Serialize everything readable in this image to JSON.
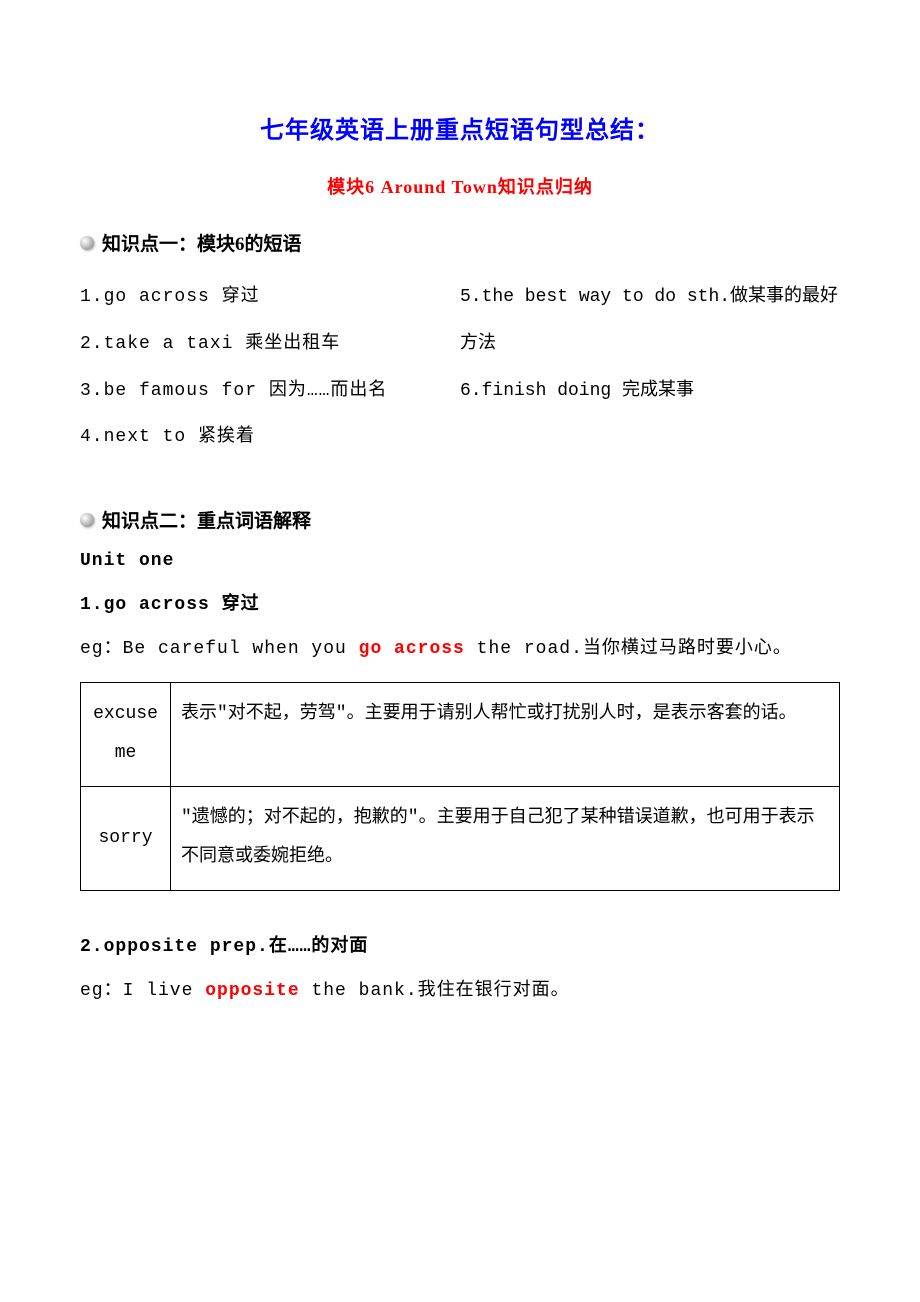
{
  "title": {
    "main": "七年级英语上册重点短语句型总结：",
    "sub": "模块6 Around Town知识点归纳",
    "main_color": "#0000ff",
    "sub_color": "#ff0000",
    "main_fontsize": 24,
    "sub_fontsize": 18
  },
  "section1": {
    "header": "知识点一：模块6的短语",
    "left_items": [
      "1.go across 穿过",
      "2.take a taxi 乘坐出租车",
      "3.be  famous  for 因为……而出名",
      "4.next to 紧挨着"
    ],
    "right_items": [
      "5.the best way to do sth.做某事的最好",
      "方法",
      "6.finish doing 完成某事"
    ]
  },
  "section2": {
    "header": "知识点二：重点词语解释",
    "unit_label": "Unit one",
    "term1": {
      "header": "1.go across 穿过",
      "example_pre": "eg：Be careful when you ",
      "example_highlight": "go across",
      "example_post": " the road.当你横过马路时要小心。",
      "table": {
        "columns": [
          "term",
          "definition"
        ],
        "rows": [
          {
            "term": "excuse me",
            "definition": "表示\"对不起，劳驾\"。主要用于请别人帮忙或打扰别人时，是表示客套的话。"
          },
          {
            "term": "sorry",
            "definition": "\"遗憾的；对不起的，抱歉的\"。主要用于自己犯了某种错误道歉，也可用于表示不同意或委婉拒绝。"
          }
        ],
        "border_color": "#000000",
        "cell_padding": 12,
        "col1_width": 90
      }
    },
    "term2": {
      "header": "2.opposite  prep.在……的对面",
      "example_pre": "eg：I live ",
      "example_highlight": "opposite",
      "example_post": " the bank.我住在银行对面。"
    }
  },
  "colors": {
    "text": "#000000",
    "highlight": "#ff0000",
    "background": "#ffffff"
  },
  "typography": {
    "body_fontsize": 18,
    "line_height": 2.6
  }
}
